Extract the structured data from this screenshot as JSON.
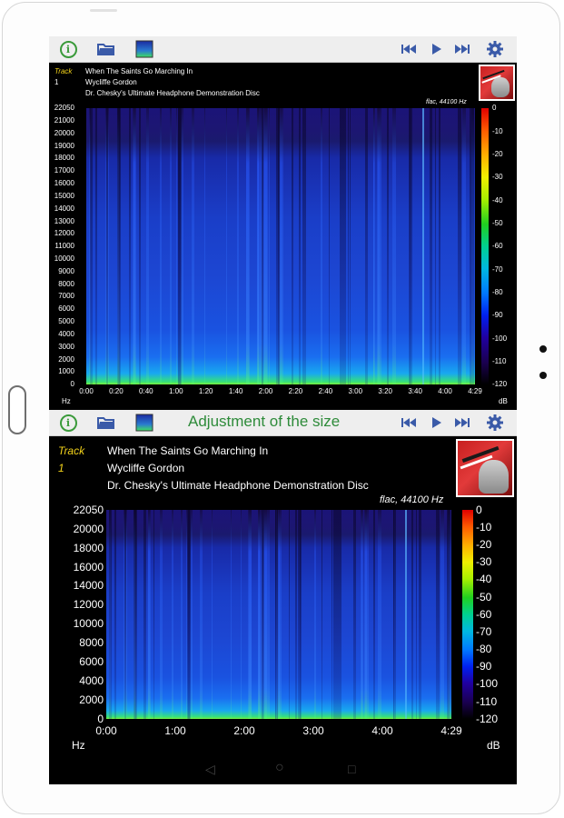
{
  "toolbar_top": {
    "icons": [
      "info-icon",
      "folder-open-icon",
      "spectrogram-icon",
      "skip-previous-icon",
      "play-icon",
      "skip-next-icon",
      "settings-gear-icon"
    ]
  },
  "toolbar_bottom": {
    "title": "Adjustment of the size",
    "icons": [
      "info-icon",
      "folder-open-icon",
      "spectrogram-icon",
      "skip-previous-icon",
      "play-icon",
      "skip-next-icon",
      "settings-gear-icon"
    ]
  },
  "track": {
    "label": "Track",
    "number": "1",
    "title": "When The Saints Go Marching In",
    "artist": "Wycliffe Gordon",
    "album": "Dr. Chesky's Ultimate Headphone Demonstration Disc",
    "format": "flac, 44100 Hz"
  },
  "spectrogram_small": {
    "y_ticks": [
      "22050",
      "21000",
      "20000",
      "19000",
      "18000",
      "17000",
      "16000",
      "15000",
      "14000",
      "13000",
      "12000",
      "11000",
      "10000",
      "9000",
      "8000",
      "7000",
      "6000",
      "5000",
      "4000",
      "3000",
      "2000",
      "1000",
      "0"
    ],
    "x_ticks": [
      "0:00",
      "0:20",
      "0:40",
      "1:00",
      "1:20",
      "1:40",
      "2:00",
      "2:20",
      "2:40",
      "3:00",
      "3:20",
      "3:40",
      "4:00",
      "4:29"
    ],
    "db_ticks": [
      "0",
      "-10",
      "-20",
      "-30",
      "-40",
      "-50",
      "-60",
      "-70",
      "-80",
      "-90",
      "-100",
      "-110",
      "-120"
    ],
    "y_unit": "Hz",
    "db_unit": "dB"
  },
  "spectrogram_large": {
    "y_ticks": [
      "22050",
      "20000",
      "18000",
      "16000",
      "14000",
      "12000",
      "10000",
      "8000",
      "6000",
      "4000",
      "2000",
      "0"
    ],
    "x_ticks": [
      "0:00",
      "1:00",
      "2:00",
      "3:00",
      "4:00",
      "4:29"
    ],
    "db_ticks": [
      "0",
      "-10",
      "-20",
      "-30",
      "-40",
      "-50",
      "-60",
      "-70",
      "-80",
      "-90",
      "-100",
      "-110",
      "-120"
    ],
    "y_unit": "Hz",
    "db_unit": "dB"
  },
  "system_nav": {
    "back": "◁",
    "home": "○",
    "recents": "□"
  },
  "colors": {
    "toolbar_bg": "#eeeeee",
    "title_green": "#2e8b3a",
    "track_yellow": "#f2d21a",
    "transport_blue": "#3a5aa8"
  }
}
